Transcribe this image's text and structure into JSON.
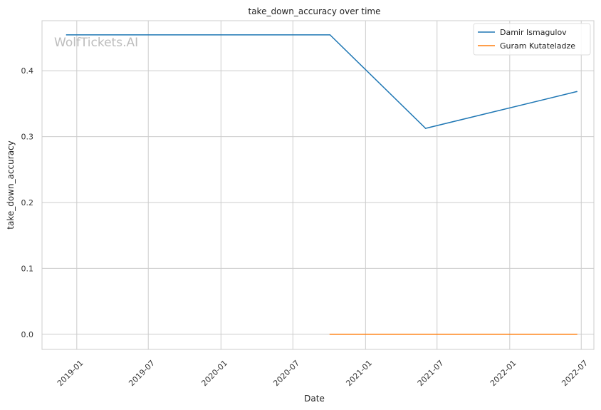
{
  "chart_data": {
    "type": "line",
    "title": "take_down_accuracy over time",
    "xlabel": "Date",
    "ylabel": "take_down_accuracy",
    "watermark": "WolfTickets.AI",
    "x_ticks": [
      {
        "label": "2019-01",
        "date": "2019-01-01"
      },
      {
        "label": "2019-07",
        "date": "2019-07-01"
      },
      {
        "label": "2020-01",
        "date": "2020-01-01"
      },
      {
        "label": "2020-07",
        "date": "2020-07-01"
      },
      {
        "label": "2021-01",
        "date": "2021-01-01"
      },
      {
        "label": "2021-07",
        "date": "2021-07-01"
      },
      {
        "label": "2022-01",
        "date": "2022-01-01"
      },
      {
        "label": "2022-07",
        "date": "2022-07-01"
      }
    ],
    "y_ticks": [
      "0.0",
      "0.1",
      "0.2",
      "0.3",
      "0.4"
    ],
    "ylim": [
      -0.023,
      0.476
    ],
    "xlim": [
      "2018-10-05",
      "2022-08-02"
    ],
    "grid": true,
    "legend_position": "top-right",
    "series": [
      {
        "name": "Damir Ismagulov",
        "color": "#1f77b4",
        "points": [
          {
            "x": "2018-12-06",
            "y": 0.4545
          },
          {
            "x": "2020-10-03",
            "y": 0.4545
          },
          {
            "x": "2021-06-02",
            "y": 0.3125
          },
          {
            "x": "2022-06-20",
            "y": 0.3684
          }
        ]
      },
      {
        "name": "Guram Kutateladze",
        "color": "#ff7f0e",
        "points": [
          {
            "x": "2020-10-03",
            "y": 0.0
          },
          {
            "x": "2021-06-02",
            "y": 0.0
          },
          {
            "x": "2022-06-20",
            "y": 0.0
          }
        ]
      }
    ]
  }
}
